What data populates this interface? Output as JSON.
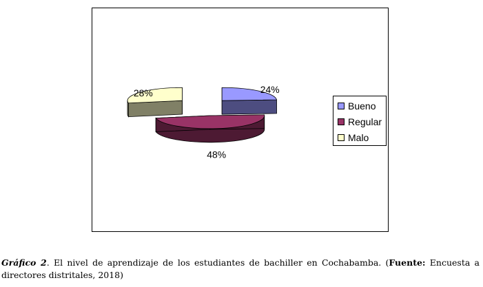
{
  "chart_data": {
    "type": "pie",
    "style": "3d-exploded",
    "categories": [
      "Bueno",
      "Regular",
      "Malo"
    ],
    "values": [
      24,
      48,
      28
    ],
    "labels": [
      "24%",
      "48%",
      "28%"
    ],
    "colors": {
      "Bueno": "#9999ff",
      "Regular": "#993366",
      "Malo": "#ffffcc"
    },
    "side_colors": {
      "Bueno": "#4d4d80",
      "Regular": "#4d1a33",
      "Malo": "#808066"
    },
    "legend_position": "right",
    "title": ""
  },
  "caption": {
    "label": "Gráfico 2",
    "text": ". El nivel de aprendizaje de los estudiantes de bachiller en Cochabamba. (",
    "source_label": "Fuente:",
    "source_text": " Encuesta a directores distritales, 2018)"
  }
}
